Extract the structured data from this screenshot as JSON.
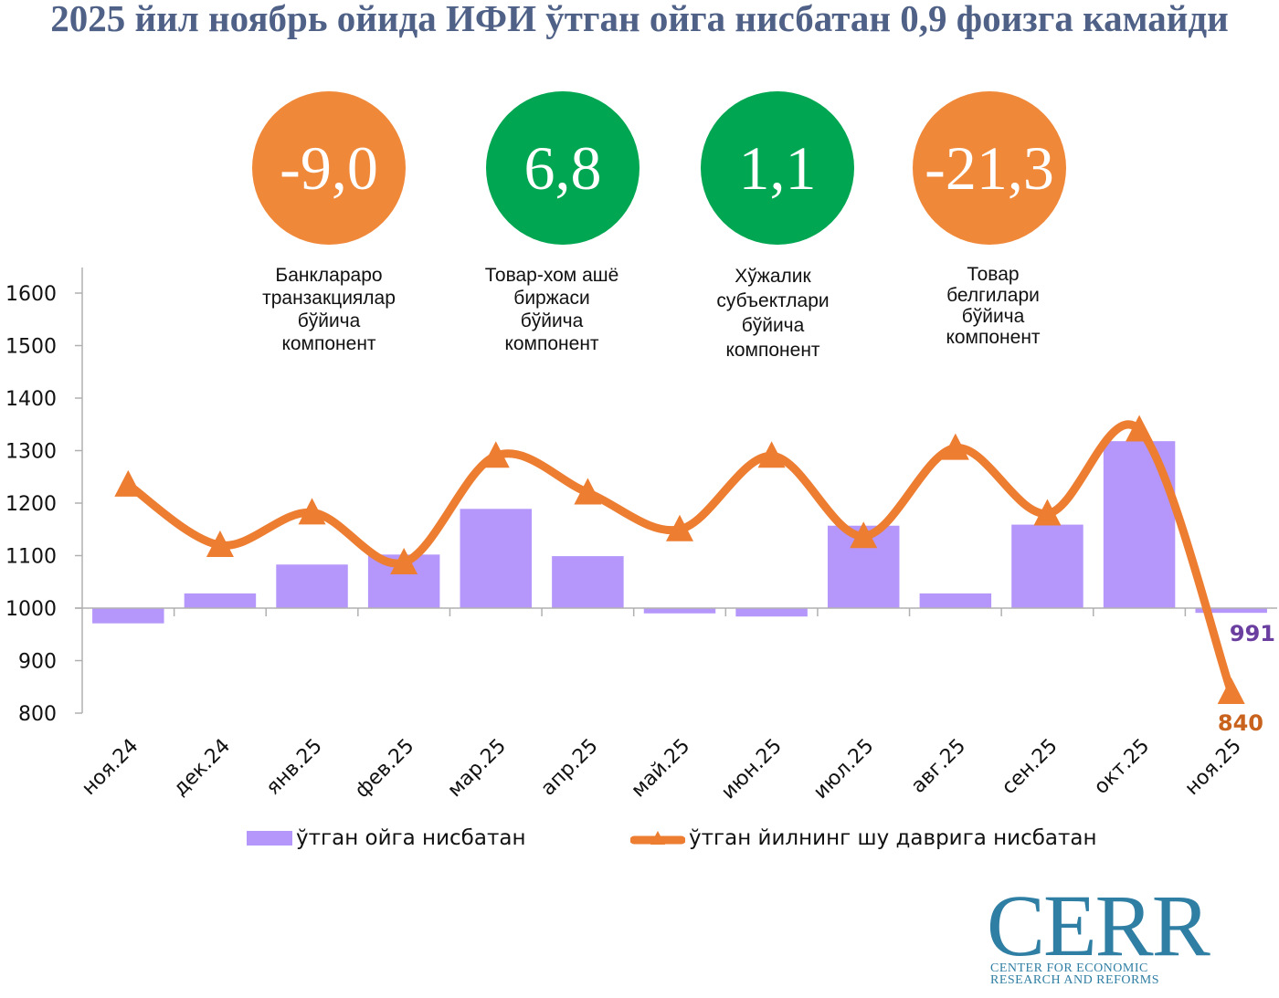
{
  "header": {
    "title": "2025 йил ноябрь ойида ИФИ ўтган ойга нисбатан 0,9 фоизга камайди"
  },
  "components": [
    {
      "value": "-9,0",
      "color": "#f0883a",
      "label_lines": [
        "Банклараро",
        "транзакциялар",
        "бўйича",
        "компонент"
      ]
    },
    {
      "value": "6,8",
      "color": "#00a651",
      "label_lines": [
        "Товар-хом ашё",
        "биржаси",
        "бўйича",
        "компонент"
      ]
    },
    {
      "value": "1,1",
      "color": "#00a651",
      "label_lines": [
        "Хўжалик",
        "субъектлари",
        "бўйича",
        "компонент"
      ]
    },
    {
      "value": "-21,3",
      "color": "#f0883a",
      "label_lines": [
        "Товар",
        "белгилари",
        "бўйича",
        "компонент"
      ]
    }
  ],
  "chart_data": {
    "type": "bar",
    "title": "",
    "xlabel": "",
    "ylabel": "",
    "ylim": [
      800,
      1600
    ],
    "yticks": [
      800,
      900,
      1000,
      1100,
      1200,
      1300,
      1400,
      1500,
      1600
    ],
    "ytick_labels": [
      "800",
      "900",
      "1000",
      "1100",
      "1200",
      "1300",
      "1400",
      "1500",
      "1600"
    ],
    "baseline": 1000,
    "grid": false,
    "legend_position": "bottom",
    "categories": [
      "ноя.24",
      "дек.24",
      "янв.25",
      "фев.25",
      "мар.25",
      "апр.25",
      "май.25",
      "июн.25",
      "июл.25",
      "авг.25",
      "сен.25",
      "окт.25",
      "ноя.25"
    ],
    "series": [
      {
        "name": "ўтган ойга нисбатан",
        "kind": "bar",
        "color": "#b596fb",
        "values": [
          971,
          1028,
          1083,
          1102,
          1189,
          1099,
          990,
          984,
          1157,
          1028,
          1159,
          1318,
          991
        ]
      },
      {
        "name": "ўтган йилнинг шу даврига нисбатан",
        "kind": "line",
        "color": "#ed7d31",
        "marker": "triangle",
        "smooth": true,
        "values": [
          1235,
          1120,
          1182,
          1087,
          1290,
          1220,
          1150,
          1290,
          1137,
          1305,
          1180,
          1340,
          840
        ]
      }
    ],
    "data_labels": [
      {
        "series": 0,
        "index": 12,
        "text": "991",
        "color": "#6b3fa0"
      },
      {
        "series": 1,
        "index": 12,
        "text": "840",
        "color": "#c8621c"
      }
    ]
  },
  "legend": {
    "bar_label": "ўтган ойга нисбатан",
    "line_label": "ўтган йилнинг шу даврига нисбатан"
  },
  "logo": {
    "wordmark": "CERR",
    "line1": "CENTER FOR ECONOMIC",
    "line2": "RESEARCH AND REFORMS"
  }
}
